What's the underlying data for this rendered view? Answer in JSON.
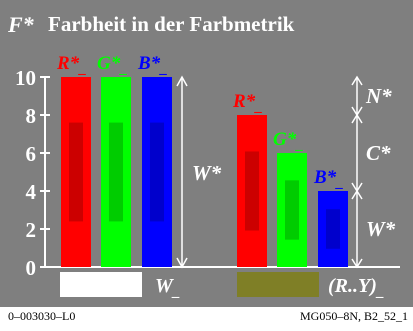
{
  "title": {
    "symbol": "F*",
    "text": "Farbheit in der Farbmetrik"
  },
  "chart_data": {
    "type": "bar",
    "title": "Farbheit in der Farbmetrik",
    "ylim": [
      0,
      10
    ],
    "yticks": [
      "0",
      "2",
      "4",
      "6",
      "8",
      "10"
    ],
    "grid": false,
    "groups": [
      {
        "bars": [
          {
            "label": "R*_",
            "value": 10,
            "color": "#ff0000",
            "label_color": "#ff0000"
          },
          {
            "label": "G*_",
            "value": 10,
            "color": "#00ff00",
            "label_color": "#00ff00"
          },
          {
            "label": "B*_",
            "value": 10,
            "color": "#0000ff",
            "label_color": "#0000ff"
          }
        ],
        "dimension_label": "W*",
        "swatch": {
          "label": "W_",
          "color": "#ffffff"
        }
      },
      {
        "bars": [
          {
            "label": "R*_",
            "value": 8,
            "color": "#ff0000",
            "label_color": "#ff0000"
          },
          {
            "label": "G*_",
            "value": 6,
            "color": "#00ff00",
            "label_color": "#00ff00"
          },
          {
            "label": "B*_",
            "value": 4,
            "color": "#0000ff",
            "label_color": "#0000ff"
          }
        ],
        "dimension_labels": [
          "N*",
          "C*",
          "W*"
        ],
        "swatch": {
          "label": "(R..Y)_",
          "color": "#7f7f26"
        }
      }
    ]
  },
  "footer": {
    "left": "0–003030–L0",
    "right": "MG050–8N, B2_52_1"
  }
}
